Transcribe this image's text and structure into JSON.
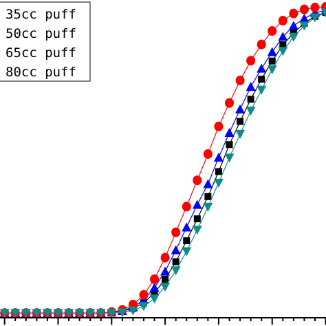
{
  "chart_data": {
    "type": "line",
    "title": "",
    "xlabel": "",
    "ylabel": "",
    "grid": false,
    "legend_position": "top-left",
    "x": [
      -10,
      -9,
      -8,
      -7,
      -6,
      -5,
      -4,
      -3,
      -2,
      -1,
      0,
      1,
      2,
      3,
      4,
      5,
      6,
      7,
      8,
      9,
      10,
      11,
      12,
      13,
      14,
      15,
      16,
      17,
      18,
      19,
      20
    ],
    "series": [
      {
        "name": "35cc puff",
        "color": "#000000",
        "marker": "square",
        "values": [
          0,
          0,
          0,
          0,
          0,
          0,
          0,
          0,
          0,
          0,
          0.2,
          0.6,
          1.5,
          3.3,
          6.4,
          10.8,
          16.4,
          23.1,
          30.1,
          37.2,
          45.2,
          53.8,
          61.2,
          68.3,
          74.7,
          80.5,
          85.7,
          89.5,
          92.6,
          94.8,
          96.0
        ]
      },
      {
        "name": "50cc puff",
        "color": "#0000ff",
        "marker": "triangle-up",
        "values": [
          0,
          0,
          0,
          0,
          0,
          0,
          0,
          0,
          0,
          0,
          0.2,
          0.7,
          1.9,
          4.2,
          8.1,
          13.3,
          20.1,
          27.4,
          34.6,
          41.2,
          49.7,
          57.6,
          65.1,
          72.3,
          78.1,
          83.4,
          88.3,
          91.8,
          94.1,
          95.9,
          96.7
        ]
      },
      {
        "name": "65cc puff",
        "color": "#ff0000",
        "marker": "circle",
        "values": [
          0,
          0,
          0,
          0,
          0,
          0,
          0,
          0,
          0,
          0,
          0.3,
          1.0,
          2.7,
          5.8,
          10.8,
          17.7,
          25.8,
          34.0,
          42.4,
          50.8,
          59.6,
          67.1,
          74.3,
          80.6,
          85.8,
          90.1,
          93.4,
          95.7,
          97.0,
          97.6,
          97.8
        ]
      },
      {
        "name": "80cc puff",
        "color": "#108a8a",
        "marker": "triangle-down",
        "values": [
          0,
          0,
          0,
          0,
          0,
          0,
          0,
          0,
          0,
          0,
          0,
          0.2,
          0.8,
          2.2,
          4.6,
          8.4,
          13.6,
          19.7,
          26.6,
          33.9,
          41.6,
          49.6,
          57.2,
          64.6,
          71.3,
          77.8,
          83.7,
          88.2,
          91.8,
          94.4,
          96.0
        ]
      }
    ],
    "xlim": [
      -11.2,
      20.8
    ],
    "ylim": [
      -1.5,
      100
    ]
  }
}
